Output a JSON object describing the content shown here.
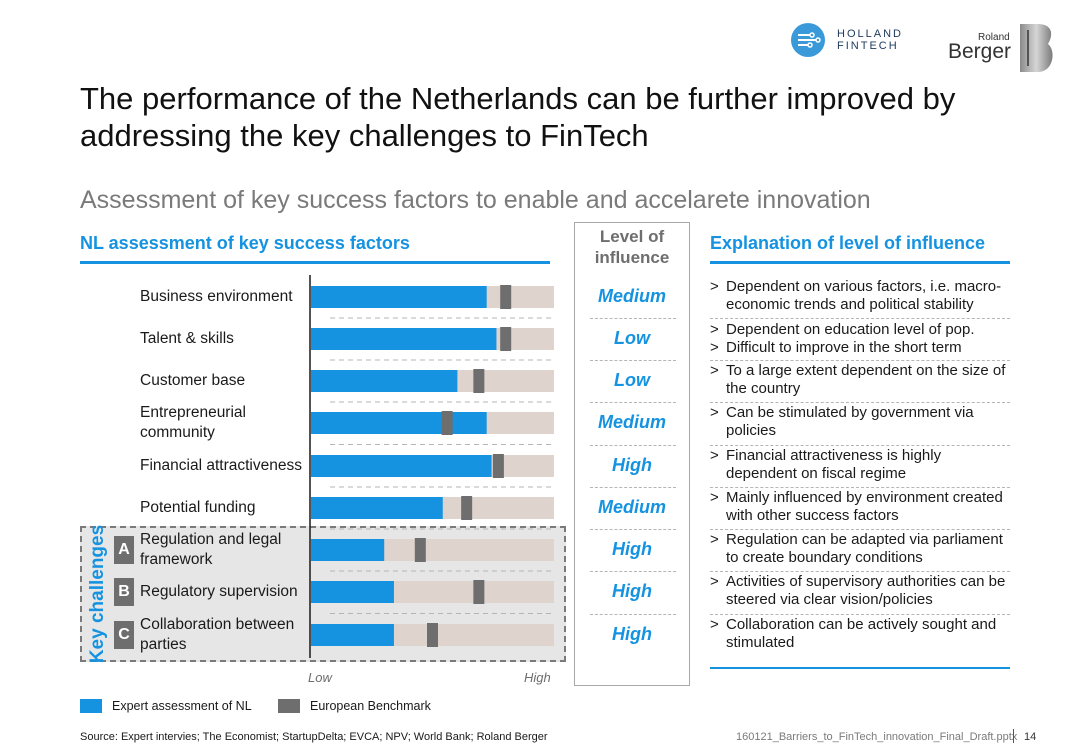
{
  "header": {
    "title": "The performance of the Netherlands can be further improved by addressing the key challenges to FinTech",
    "subtitle": "Assessment of key success factors to enable and accelarete innovation",
    "logo_hf_line1": "HOLLAND",
    "logo_hf_line2": "FINTECH",
    "logo_rb_small": "Roland",
    "logo_rb_big": "Berger"
  },
  "left_section": {
    "title": "NL assessment of key success factors"
  },
  "middle_section": {
    "title": "Level of influence"
  },
  "right_section": {
    "title": "Explanation of level of influence"
  },
  "key_challenges_label": "Key challenges",
  "chart_data": {
    "type": "bar",
    "title": "NL assessment of key success factors",
    "x_axis": {
      "low_label": "Low",
      "high_label": "High",
      "range": [
        0,
        100
      ]
    },
    "categories": [
      "Business environment",
      "Talent & skills",
      "Customer base",
      "Entrepreneurial community",
      "Financial attractiveness",
      "Potential funding",
      "Regulation and legal framework",
      "Regulatory supervision",
      "Collaboration between parties"
    ],
    "category_letters": [
      "",
      "",
      "",
      "",
      "",
      "",
      "A",
      "B",
      "C"
    ],
    "series": [
      {
        "name": "Expert assessment of NL",
        "color": "#1593e0",
        "values": [
          72,
          76,
          60,
          72,
          74,
          54,
          30,
          34,
          34
        ]
      },
      {
        "name": "European Benchmark",
        "color": "#6e6e6e",
        "values": [
          80,
          80,
          69,
          56,
          77,
          64,
          45,
          69,
          50
        ]
      }
    ],
    "background_color": "#ded3cd",
    "level_of_influence": [
      "Medium",
      "Low",
      "Low",
      "Medium",
      "High",
      "Medium",
      "High",
      "High",
      "High"
    ],
    "explanations": [
      [
        "Dependent on various factors, i.e. macro-economic trends and political stability"
      ],
      [
        "Dependent on education level of pop.",
        "Difficult to improve in the short term"
      ],
      [
        "To a large extent dependent on the size of the country"
      ],
      [
        "Can be stimulated by government via policies"
      ],
      [
        "Financial attractiveness is highly dependent on fiscal regime"
      ],
      [
        "Mainly influenced by environment created with other success factors"
      ],
      [
        "Regulation can be adapted via parliament to create boundary conditions"
      ],
      [
        "Activities of supervisory authorities can be steered via clear vision/policies"
      ],
      [
        "Collaboration can be actively sought and stimulated"
      ]
    ]
  },
  "legend": {
    "nl_label": "Expert assessment of NL",
    "benchmark_label": "European Benchmark"
  },
  "footer": {
    "source": "Source: Expert intervies; The Economist; StartupDelta; EVCA; NPV; World Bank; Roland Berger",
    "file": "160121_Barriers_to_FinTech_innovation_Final_Draft.pptx",
    "page": "14"
  }
}
